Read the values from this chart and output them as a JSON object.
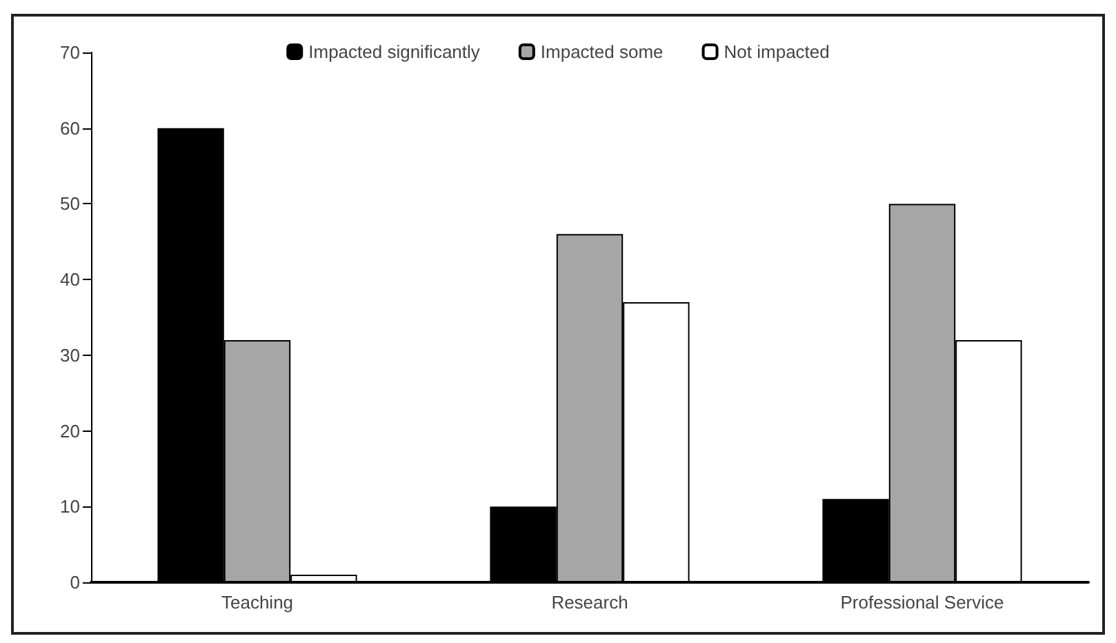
{
  "chart_data": {
    "type": "bar",
    "categories": [
      "Teaching",
      "Research",
      "Professional Service"
    ],
    "series": [
      {
        "name": "Impacted significantly",
        "color": "#000000",
        "values": [
          60,
          10,
          11
        ]
      },
      {
        "name": "Impacted some",
        "color": "#a6a6a6",
        "values": [
          32,
          46,
          50
        ]
      },
      {
        "name": "Not impacted",
        "color": "#ffffff",
        "values": [
          1,
          37,
          32
        ]
      }
    ],
    "ylim": [
      0,
      70
    ],
    "yticks": [
      0,
      10,
      20,
      30,
      40,
      50,
      60,
      70
    ],
    "grid": false,
    "legend": "top"
  }
}
